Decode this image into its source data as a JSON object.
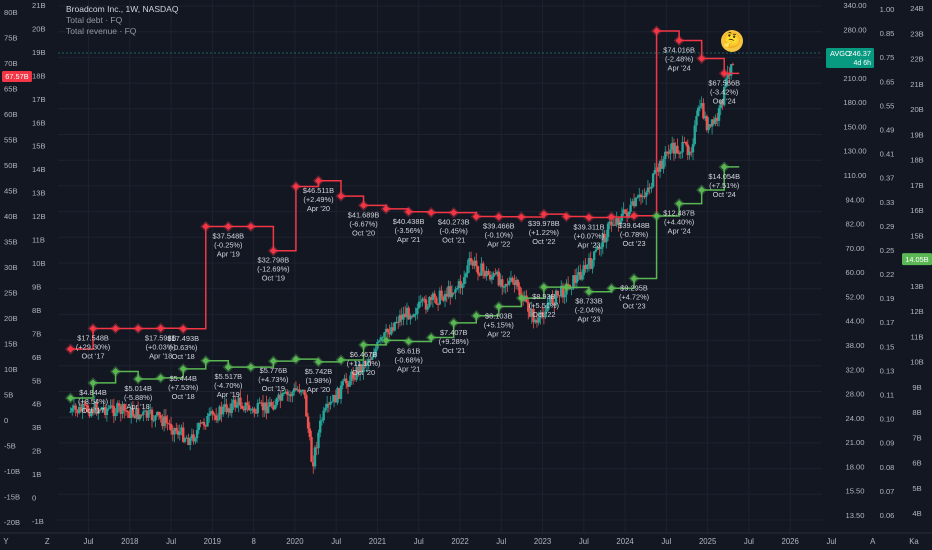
{
  "header": {
    "title": "Broadcom Inc., 1W, NASDAQ",
    "series1": "Total debt · FQ",
    "series2": "Total revenue · FQ"
  },
  "emoji": "🤔",
  "colors": {
    "background": "#131722",
    "grid": "#1e2230",
    "axis_text": "#b2b5be",
    "debt": "#f23645",
    "revenue": "#5ab753",
    "candle_up": "#26a69a",
    "candle_down": "#ef5350",
    "price_label": "#089981"
  },
  "chart_data": {
    "type": "line",
    "x_axis_labels": [
      "Y",
      "Z",
      "Jul",
      "2018",
      "Jul",
      "2019",
      "8",
      "2020",
      "Jul",
      "2021",
      "Jul",
      "2022",
      "Jul",
      "2023",
      "Jul",
      "2024",
      "Jul",
      "2025",
      "Jul",
      "2026",
      "Jul",
      "A",
      "Ka"
    ],
    "left_axis_labels": [
      "80B",
      "75B",
      "70B",
      "65B",
      "60B",
      "55B",
      "50B",
      "45B",
      "40B",
      "35B",
      "30B",
      "25B",
      "20B",
      "15B",
      "10B",
      "5B",
      "0",
      "-5B",
      "-10B",
      "-15B",
      "-20B"
    ],
    "left_axis_2_labels": [
      "21B",
      "20B",
      "19B",
      "18B",
      "17B",
      "16B",
      "15B",
      "14B",
      "13B",
      "12B",
      "11B",
      "10B",
      "9B",
      "8B",
      "7B",
      "6B",
      "5B",
      "4B",
      "3B",
      "2B",
      "1B",
      "0",
      "-1B"
    ],
    "right_axis_labels": [
      "340.00",
      "280.00",
      "240.00",
      "210.00",
      "180.00",
      "150.00",
      "130.00",
      "110.00",
      "94.00",
      "82.00",
      "70.00",
      "60.00",
      "52.00",
      "44.00",
      "38.00",
      "32.00",
      "28.00",
      "24.00",
      "21.00",
      "18.00",
      "15.50",
      "13.50"
    ],
    "right_axis_2_labels": [
      "1.00",
      "0.85",
      "0.75",
      "0.65",
      "0.55",
      "0.49",
      "0.41",
      "0.37",
      "0.33",
      "0.29",
      "0.25",
      "0.22",
      "0.19",
      "0.17",
      "0.15",
      "0.13",
      "0.11",
      "0.10",
      "0.09",
      "0.08",
      "0.07",
      "0.06"
    ],
    "right_axis_3_labels": [
      "24B",
      "23B",
      "22B",
      "21B",
      "20B",
      "19B",
      "18B",
      "17B",
      "16B",
      "15B",
      "14B",
      "13B",
      "12B",
      "11B",
      "10B",
      "9B",
      "8B",
      "7B",
      "6B",
      "5B",
      "4B"
    ],
    "left_price_label": "67.57B",
    "price_tag": {
      "ticker": "AVGO",
      "value": "246.37",
      "time": "4d 6h"
    },
    "revenue_tag": "14.05B",
    "series": [
      {
        "name": "Total debt",
        "color": "#f23645",
        "points": [
          {
            "x": 2017.55,
            "v": 13.5
          },
          {
            "x": 2017.8,
            "v": 17.548
          },
          {
            "x": 2018.05,
            "v": 17.55
          },
          {
            "x": 2018.3,
            "v": 17.55
          },
          {
            "x": 2018.55,
            "v": 17.598
          },
          {
            "x": 2018.8,
            "v": 17.493
          },
          {
            "x": 2019.05,
            "v": 37.55
          },
          {
            "x": 2019.3,
            "v": 37.548
          },
          {
            "x": 2019.55,
            "v": 37.55
          },
          {
            "x": 2019.8,
            "v": 32.798
          },
          {
            "x": 2020.05,
            "v": 45.4
          },
          {
            "x": 2020.3,
            "v": 46.511
          },
          {
            "x": 2020.55,
            "v": 43.5
          },
          {
            "x": 2020.8,
            "v": 41.689
          },
          {
            "x": 2021.05,
            "v": 41.0
          },
          {
            "x": 2021.3,
            "v": 40.438
          },
          {
            "x": 2021.55,
            "v": 40.3
          },
          {
            "x": 2021.8,
            "v": 40.273
          },
          {
            "x": 2022.05,
            "v": 39.5
          },
          {
            "x": 2022.3,
            "v": 39.466
          },
          {
            "x": 2022.55,
            "v": 39.4
          },
          {
            "x": 2022.8,
            "v": 39.978
          },
          {
            "x": 2023.05,
            "v": 39.5
          },
          {
            "x": 2023.3,
            "v": 39.311
          },
          {
            "x": 2023.55,
            "v": 39.4
          },
          {
            "x": 2023.8,
            "v": 39.648
          },
          {
            "x": 2024.05,
            "v": 75.89
          },
          {
            "x": 2024.3,
            "v": 74.016
          },
          {
            "x": 2024.55,
            "v": 70.5
          },
          {
            "x": 2024.8,
            "v": 67.566
          }
        ],
        "labels": [
          {
            "x": 2017.8,
            "value": "$17.548B",
            "change": "(+29.30%)",
            "period": "Oct '17"
          },
          {
            "x": 2018.55,
            "value": "$17.598B",
            "change": "(+0.03%)",
            "period": "Apr '18"
          },
          {
            "x": 2018.8,
            "value": "$17.493B",
            "change": "(-0.63%)",
            "period": "Oct '18"
          },
          {
            "x": 2019.3,
            "value": "$37.548B",
            "change": "(-0.25%)",
            "period": "Apr '19"
          },
          {
            "x": 2019.8,
            "value": "$32.798B",
            "change": "(-12.69%)",
            "period": "Oct '19"
          },
          {
            "x": 2020.3,
            "value": "$46.511B",
            "change": "(+2.49%)",
            "period": "Apr '20"
          },
          {
            "x": 2020.8,
            "value": "$41.689B",
            "change": "(-6.67%)",
            "period": "Oct '20"
          },
          {
            "x": 2021.3,
            "value": "$40.438B",
            "change": "(-3.56%)",
            "period": "Apr '21"
          },
          {
            "x": 2021.8,
            "value": "$40.273B",
            "change": "(-0.45%)",
            "period": "Oct '21"
          },
          {
            "x": 2022.3,
            "value": "$39.466B",
            "change": "(-0.10%)",
            "period": "Apr '22"
          },
          {
            "x": 2022.8,
            "value": "$39.978B",
            "change": "(+1.22%)",
            "period": "Oct '22"
          },
          {
            "x": 2023.3,
            "value": "$39.311B",
            "change": "(+0.07%)",
            "period": "Apr '23"
          },
          {
            "x": 2023.8,
            "value": "$39.648B",
            "change": "(-0.78%)",
            "period": "Oct '23"
          },
          {
            "x": 2024.3,
            "value": "$74.016B",
            "change": "(-2.48%)",
            "period": "Apr '24"
          },
          {
            "x": 2024.8,
            "value": "$67.566B",
            "change": "(-3.42%)",
            "period": "Oct '24"
          }
        ]
      },
      {
        "name": "Total revenue",
        "color": "#5ab753",
        "points": [
          {
            "x": 2017.55,
            "v": 4.2
          },
          {
            "x": 2017.8,
            "v": 4.844
          },
          {
            "x": 2018.05,
            "v": 5.33
          },
          {
            "x": 2018.3,
            "v": 5.014
          },
          {
            "x": 2018.55,
            "v": 5.06
          },
          {
            "x": 2018.8,
            "v": 5.444
          },
          {
            "x": 2019.05,
            "v": 5.79
          },
          {
            "x": 2019.3,
            "v": 5.517
          },
          {
            "x": 2019.55,
            "v": 5.52
          },
          {
            "x": 2019.8,
            "v": 5.776
          },
          {
            "x": 2020.05,
            "v": 5.86
          },
          {
            "x": 2020.3,
            "v": 5.742
          },
          {
            "x": 2020.55,
            "v": 5.82
          },
          {
            "x": 2020.8,
            "v": 6.467
          },
          {
            "x": 2021.05,
            "v": 6.66
          },
          {
            "x": 2021.3,
            "v": 6.61
          },
          {
            "x": 2021.55,
            "v": 6.78
          },
          {
            "x": 2021.8,
            "v": 7.407
          },
          {
            "x": 2022.05,
            "v": 7.71
          },
          {
            "x": 2022.3,
            "v": 8.103
          },
          {
            "x": 2022.55,
            "v": 8.46
          },
          {
            "x": 2022.8,
            "v": 8.93
          },
          {
            "x": 2023.05,
            "v": 8.92
          },
          {
            "x": 2023.3,
            "v": 8.733
          },
          {
            "x": 2023.55,
            "v": 8.88
          },
          {
            "x": 2023.8,
            "v": 9.295
          },
          {
            "x": 2024.05,
            "v": 11.96
          },
          {
            "x": 2024.3,
            "v": 12.487
          },
          {
            "x": 2024.55,
            "v": 13.07
          },
          {
            "x": 2024.8,
            "v": 14.054
          }
        ],
        "labels": [
          {
            "x": 2017.8,
            "value": "$4.844B",
            "change": "(+8.54%)",
            "period": "Oct '17"
          },
          {
            "x": 2018.3,
            "value": "$5.014B",
            "change": "(-5.88%)",
            "period": "Apr '18"
          },
          {
            "x": 2018.8,
            "value": "$5.444B",
            "change": "(+7.53%)",
            "period": "Oct '18"
          },
          {
            "x": 2019.3,
            "value": "$5.517B",
            "change": "(-4.70%)",
            "period": "Apr '19"
          },
          {
            "x": 2019.8,
            "value": "$5.776B",
            "change": "(+4.73%)",
            "period": "Oct '19"
          },
          {
            "x": 2020.3,
            "value": "$5.742B",
            "change": "(1.98%)",
            "period": "Apr '20"
          },
          {
            "x": 2020.8,
            "value": "$6.467B",
            "change": "(+11.10%)",
            "period": "Oct '20"
          },
          {
            "x": 2021.3,
            "value": "$6.61B",
            "change": "(-0.68%)",
            "period": "Apr '21"
          },
          {
            "x": 2021.8,
            "value": "$7.407B",
            "change": "(+9.28%)",
            "period": "Oct '21"
          },
          {
            "x": 2022.3,
            "value": "$8.103B",
            "change": "(+5.15%)",
            "period": "Apr '22"
          },
          {
            "x": 2022.8,
            "value": "$8.93B",
            "change": "(+5.51%)",
            "period": "Oct '22"
          },
          {
            "x": 2023.3,
            "value": "$8.733B",
            "change": "(-2.04%)",
            "period": "Apr '23"
          },
          {
            "x": 2023.8,
            "value": "$9.295B",
            "change": "(+4.72%)",
            "period": "Oct '23"
          },
          {
            "x": 2024.3,
            "value": "$12.487B",
            "change": "(+4.40%)",
            "period": "Apr '24"
          },
          {
            "x": 2024.8,
            "value": "$14.054B",
            "change": "(+7.51%)",
            "period": "Oct '24"
          }
        ]
      }
    ]
  }
}
